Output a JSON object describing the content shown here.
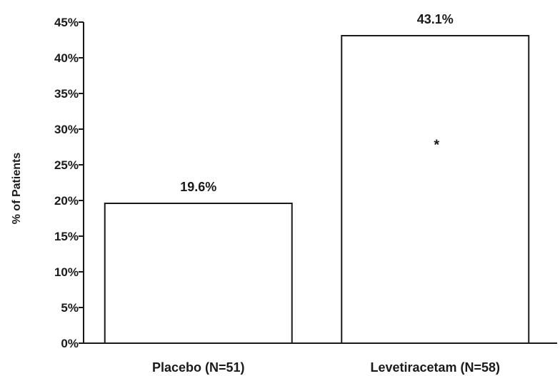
{
  "chart_data": {
    "type": "bar",
    "categories": [
      "Placebo (N=51)",
      "Levetiracetam (N=58)"
    ],
    "values": [
      19.6,
      43.1
    ],
    "data_labels": [
      "19.6%",
      "43.1%"
    ],
    "ylabel": "% of Patients",
    "xlabel": "",
    "ylim": [
      0,
      45
    ],
    "yticks": [
      0,
      5,
      10,
      15,
      20,
      25,
      30,
      35,
      40,
      45
    ],
    "ytick_labels": [
      "0%",
      "5%",
      "10%",
      "15%",
      "20%",
      "25%",
      "30%",
      "35%",
      "40%",
      "45%"
    ],
    "grid": false,
    "legend": "none",
    "annotations": [
      {
        "category_index": 1,
        "text": "*"
      }
    ],
    "colors": {
      "bar_fill": "#ffffff",
      "bar_stroke": "#1a1a1a",
      "text": "#1a1a1a"
    }
  }
}
